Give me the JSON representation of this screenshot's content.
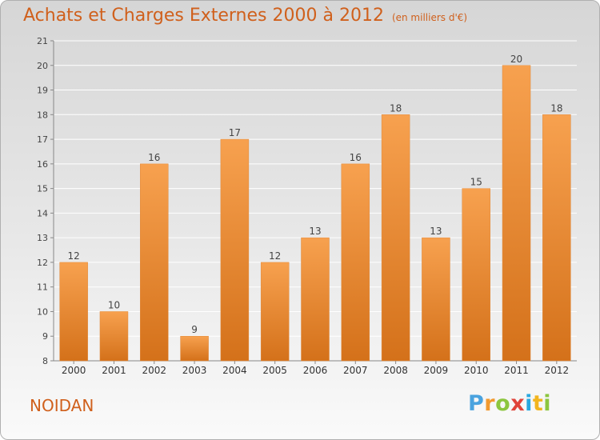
{
  "header": {
    "title": "Achats et Charges Externes 2000 à 2012",
    "subtitle": "(en milliers d'€)"
  },
  "footer": {
    "commune": "NOIDAN",
    "logo": "Proxiti"
  },
  "colors": {
    "bar_top": "#f7a14f",
    "bar_bottom": "#d4711a",
    "title": "#d0601c",
    "grid": "#ffffff"
  },
  "chart_data": {
    "type": "bar",
    "title": "Achats et Charges Externes 2000 à 2012",
    "subtitle": "(en milliers d'€)",
    "categories": [
      "2000",
      "2001",
      "2002",
      "2003",
      "2004",
      "2005",
      "2006",
      "2007",
      "2008",
      "2009",
      "2010",
      "2011",
      "2012"
    ],
    "values": [
      12,
      10,
      16,
      9,
      17,
      12,
      13,
      16,
      18,
      13,
      15,
      20,
      18
    ],
    "ylim": [
      8,
      21
    ],
    "yticks": [
      8,
      9,
      10,
      11,
      12,
      13,
      14,
      15,
      16,
      17,
      18,
      19,
      20,
      21
    ],
    "grid": true,
    "data_labels": true
  }
}
